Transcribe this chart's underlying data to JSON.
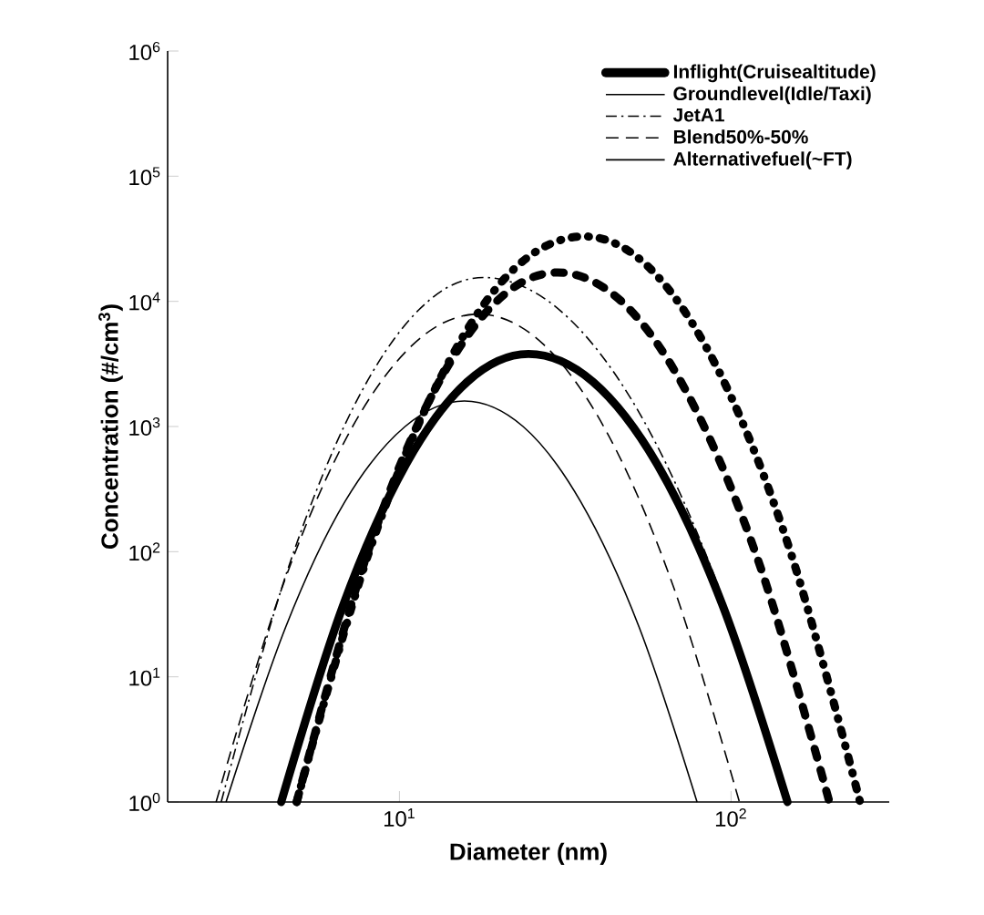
{
  "chart_data": {
    "type": "line",
    "xlabel": "Diameter (nm)",
    "ylabel": "Concentration (#/cm$^{3}$)",
    "log": "xy",
    "xlim": [
      2,
      300
    ],
    "ylim": [
      1,
      1000000
    ],
    "xticks": [
      {
        "value": 10,
        "label": "10$^{1}$"
      },
      {
        "value": 100,
        "label": "10$^{2}$"
      }
    ],
    "yticks": [
      {
        "value": 1,
        "label": "10$^{0}$"
      },
      {
        "value": 10,
        "label": "10$^{1}$"
      },
      {
        "value": 100,
        "label": "10$^{2}$"
      },
      {
        "value": 1000,
        "label": "10$^{3}$"
      },
      {
        "value": 10000,
        "label": "10$^{4}$"
      },
      {
        "value": 100000,
        "label": "10$^{5}$"
      },
      {
        "value": 1000000,
        "label": "10$^{6}$"
      }
    ],
    "legend": "top right",
    "grid": false,
    "marker": "none",
    "annotations": [
      "Groundlevel(Idle/Taxi)"
    ],
    "series": [
      {
        "name": "Inflight(Cruisealtitude)",
        "line_style": "solid",
        "color": "#000000",
        "x": [
          4.4,
          6.76,
          10.4,
          16.0,
          24.5,
          38.4,
          60.3,
          94.4,
          148
        ],
        "values": [
          1,
          37,
          484,
          2270,
          3800,
          2270,
          484,
          37,
          1
        ]
      },
      {
        "line_style": "dashdot",
        "color": "#000000",
        "x": [
          4.9,
          8.05,
          13.3,
          21.8,
          36,
          58.1,
          94,
          152,
          245
        ],
        "values": [
          1,
          95,
          2450,
          17400,
          33000,
          17400,
          2450,
          95,
          1
        ]
      },
      {
        "line_style": "dashed",
        "color": "#000000",
        "x": [
          4.9,
          7.7,
          12.1,
          19.1,
          30,
          48.1,
          77.1,
          123.6,
          198
        ],
        "values": [
          1,
          71,
          1480,
          9300,
          17000,
          9300,
          1480,
          71,
          1
        ]
      },
      {
        "name": "JetA1",
        "line_style": "dashdot",
        "color": "#000000",
        "x": [
          2.9,
          4.57,
          7.23,
          11.4,
          18,
          30.5,
          52,
          88.3,
          150
        ],
        "values": [
          1,
          68,
          1390,
          8470,
          15500,
          8470,
          1390,
          68,
          1
        ]
      },
      {
        "name": "Blend50%-50%",
        "line_style": "dashed",
        "color": "#000000",
        "x": [
          2.8,
          4.42,
          6.97,
          11.0,
          17.3,
          27.2,
          42.8,
          67.3,
          106
        ],
        "values": [
          1,
          51,
          841,
          4530,
          7900,
          4530,
          841,
          51,
          1
        ]
      },
      {
        "name": "Alternativefuel(~FT)",
        "line_style": "solid",
        "color": "#000000",
        "x": [
          3.0,
          4.54,
          6.85,
          10.4,
          15.7,
          23.6,
          35.2,
          52.8,
          79
        ],
        "values": [
          1,
          25,
          251,
          1000,
          1600,
          1000,
          251,
          25,
          1
        ]
      }
    ]
  }
}
